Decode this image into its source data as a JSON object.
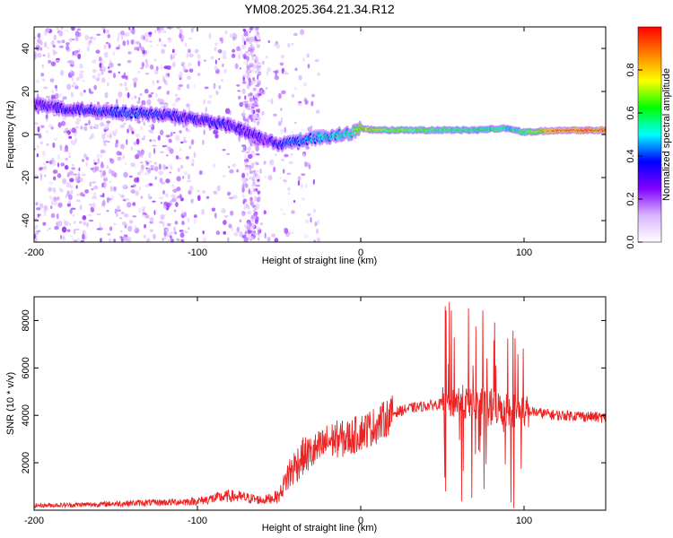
{
  "title": "YM08.2025.364.21.34.R12",
  "chart_data": [
    {
      "type": "heatmap",
      "xlabel": "Height of straight line (km)",
      "ylabel": "Frequency (Hz)",
      "xlim": [
        -200,
        150
      ],
      "ylim": [
        -50,
        50
      ],
      "x_ticks": [
        -200,
        -100,
        0,
        100
      ],
      "y_ticks": [
        -40,
        -20,
        0,
        20,
        40
      ],
      "colorbar": {
        "label": "Normalized spectral amplitude",
        "range": [
          0,
          1
        ],
        "ticks": [
          "0.0",
          "0.2",
          "0.4",
          "0.6",
          "0.8"
        ],
        "colormap": [
          "#ffffff",
          "#d8b4ff",
          "#8000ff",
          "#0000ff",
          "#00ffff",
          "#00ff00",
          "#ffff00",
          "#ff8000",
          "#ff0000"
        ]
      },
      "ridge": {
        "x": [
          -200,
          -180,
          -160,
          -140,
          -120,
          -100,
          -80,
          -60,
          -50,
          -40,
          -20,
          -5,
          0,
          10,
          30,
          50,
          70,
          90,
          100,
          120,
          150
        ],
        "frequency": [
          14,
          12,
          11,
          10,
          9,
          7,
          4,
          -2,
          -5,
          -3,
          -1,
          1,
          3,
          2,
          2,
          2,
          2,
          3,
          1,
          2,
          2
        ],
        "amplitude": [
          0.25,
          0.3,
          0.35,
          0.4,
          0.35,
          0.3,
          0.3,
          0.25,
          0.35,
          0.4,
          0.5,
          0.6,
          0.85,
          0.7,
          0.65,
          0.6,
          0.6,
          0.55,
          0.6,
          0.95,
          0.95
        ]
      }
    },
    {
      "type": "line",
      "xlabel": "Height of straight line (km)",
      "ylabel": "SNR (10 * v/v)",
      "xlim": [
        -200,
        150
      ],
      "ylim": [
        0,
        9000
      ],
      "x_ticks": [
        -200,
        -100,
        0,
        100
      ],
      "y_ticks": [
        2000,
        4000,
        6000,
        8000
      ],
      "series": [
        {
          "color": "#ee2222",
          "x": [
            -200,
            -180,
            -160,
            -140,
            -120,
            -100,
            -90,
            -80,
            -70,
            -60,
            -50,
            -45,
            -40,
            -35,
            -30,
            -25,
            -20,
            -15,
            -10,
            -5,
            0,
            10,
            20,
            30,
            40,
            50,
            55,
            60,
            65,
            70,
            75,
            80,
            85,
            90,
            95,
            100,
            105,
            110,
            120,
            130,
            140,
            150
          ],
          "y": [
            200,
            220,
            250,
            300,
            330,
            380,
            500,
            600,
            520,
            420,
            600,
            1400,
            1900,
            2300,
            2400,
            2600,
            2900,
            3000,
            3000,
            3100,
            3300,
            3600,
            4100,
            4300,
            4400,
            4500,
            4600,
            4600,
            4500,
            4500,
            4500,
            4400,
            4300,
            4250,
            4200,
            4200,
            4150,
            4100,
            4000,
            4000,
            3950,
            3900
          ]
        }
      ]
    }
  ]
}
